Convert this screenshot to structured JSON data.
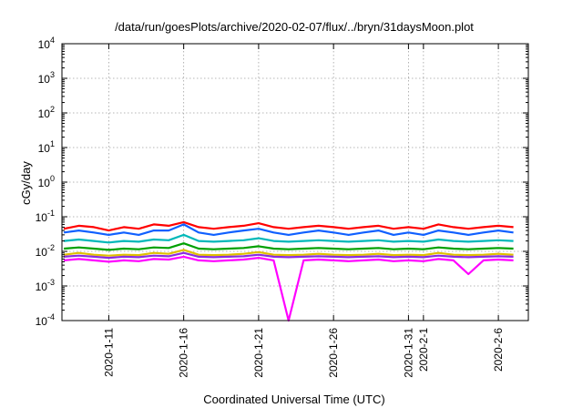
{
  "chart_data": {
    "type": "line",
    "title": "/data/run/goesPlots/archive/2020-02-07/flux/../bryn/31daysMoon.plot",
    "xlabel": "Coordinated Universal Time (UTC)",
    "ylabel": "cGy/day",
    "yscale": "log",
    "ylim": [
      0.0001,
      10000
    ],
    "xlim": [
      "2020-01-07T21:00",
      "2020-02-08T00:00"
    ],
    "grid": true,
    "y_ticks": [
      {
        "value": 0.0001,
        "base": "10",
        "exp": "-4"
      },
      {
        "value": 0.001,
        "base": "10",
        "exp": "-3"
      },
      {
        "value": 0.01,
        "base": "10",
        "exp": "-2"
      },
      {
        "value": 0.1,
        "base": "10",
        "exp": "-1"
      },
      {
        "value": 1,
        "base": "10",
        "exp": "0"
      },
      {
        "value": 10,
        "base": "10",
        "exp": "1"
      },
      {
        "value": 100,
        "base": "10",
        "exp": "2"
      },
      {
        "value": 1000,
        "base": "10",
        "exp": "3"
      },
      {
        "value": 10000,
        "base": "10",
        "exp": "4"
      }
    ],
    "x_ticks": [
      {
        "date": "2020-01-11",
        "label": "2020-1-11"
      },
      {
        "date": "2020-01-16",
        "label": "2020-1-16"
      },
      {
        "date": "2020-01-21",
        "label": "2020-1-21"
      },
      {
        "date": "2020-01-26",
        "label": "2020-1-26"
      },
      {
        "date": "2020-01-31",
        "label": "2020-1-31"
      },
      {
        "date": "2020-02-01",
        "label": "2020-2-1"
      },
      {
        "date": "2020-02-06",
        "label": "2020-2-6"
      }
    ],
    "series": [
      {
        "color": "#ff0000",
        "x": [
          "2020-01-08",
          "2020-01-09",
          "2020-01-10",
          "2020-01-11",
          "2020-01-12",
          "2020-01-13",
          "2020-01-14",
          "2020-01-15",
          "2020-01-16",
          "2020-01-17",
          "2020-01-18",
          "2020-01-19",
          "2020-01-20",
          "2020-01-21",
          "2020-01-22",
          "2020-01-23",
          "2020-01-24",
          "2020-01-25",
          "2020-01-26",
          "2020-01-27",
          "2020-01-28",
          "2020-01-29",
          "2020-01-30",
          "2020-01-31",
          "2020-02-01",
          "2020-02-02",
          "2020-02-03",
          "2020-02-04",
          "2020-02-05",
          "2020-02-06",
          "2020-02-07"
        ],
        "values": [
          0.045,
          0.055,
          0.05,
          0.04,
          0.05,
          0.045,
          0.06,
          0.055,
          0.07,
          0.05,
          0.045,
          0.05,
          0.055,
          0.065,
          0.05,
          0.045,
          0.05,
          0.055,
          0.05,
          0.045,
          0.05,
          0.055,
          0.045,
          0.05,
          0.045,
          0.06,
          0.05,
          0.045,
          0.05,
          0.055,
          0.05
        ]
      },
      {
        "color": "#1060ff",
        "x": [
          "2020-01-08",
          "2020-01-09",
          "2020-01-10",
          "2020-01-11",
          "2020-01-12",
          "2020-01-13",
          "2020-01-14",
          "2020-01-15",
          "2020-01-16",
          "2020-01-17",
          "2020-01-18",
          "2020-01-19",
          "2020-01-20",
          "2020-01-21",
          "2020-01-22",
          "2020-01-23",
          "2020-01-24",
          "2020-01-25",
          "2020-01-26",
          "2020-01-27",
          "2020-01-28",
          "2020-01-29",
          "2020-01-30",
          "2020-01-31",
          "2020-02-01",
          "2020-02-02",
          "2020-02-03",
          "2020-02-04",
          "2020-02-05",
          "2020-02-06",
          "2020-02-07"
        ],
        "values": [
          0.035,
          0.04,
          0.035,
          0.03,
          0.035,
          0.03,
          0.04,
          0.04,
          0.06,
          0.035,
          0.03,
          0.035,
          0.04,
          0.045,
          0.035,
          0.03,
          0.035,
          0.04,
          0.035,
          0.03,
          0.035,
          0.04,
          0.03,
          0.035,
          0.03,
          0.04,
          0.035,
          0.03,
          0.035,
          0.04,
          0.035
        ]
      },
      {
        "color": "#00b8b8",
        "x": [
          "2020-01-08",
          "2020-01-09",
          "2020-01-10",
          "2020-01-11",
          "2020-01-12",
          "2020-01-13",
          "2020-01-14",
          "2020-01-15",
          "2020-01-16",
          "2020-01-17",
          "2020-01-18",
          "2020-01-19",
          "2020-01-20",
          "2020-01-21",
          "2020-01-22",
          "2020-01-23",
          "2020-01-24",
          "2020-01-25",
          "2020-01-26",
          "2020-01-27",
          "2020-01-28",
          "2020-01-29",
          "2020-01-30",
          "2020-01-31",
          "2020-02-01",
          "2020-02-02",
          "2020-02-03",
          "2020-02-04",
          "2020-02-05",
          "2020-02-06",
          "2020-02-07"
        ],
        "values": [
          0.02,
          0.022,
          0.02,
          0.018,
          0.02,
          0.019,
          0.022,
          0.021,
          0.03,
          0.02,
          0.019,
          0.02,
          0.021,
          0.024,
          0.02,
          0.019,
          0.02,
          0.021,
          0.02,
          0.019,
          0.02,
          0.021,
          0.019,
          0.02,
          0.019,
          0.022,
          0.02,
          0.019,
          0.02,
          0.021,
          0.02
        ]
      },
      {
        "color": "#00a000",
        "x": [
          "2020-01-08",
          "2020-01-09",
          "2020-01-10",
          "2020-01-11",
          "2020-01-12",
          "2020-01-13",
          "2020-01-14",
          "2020-01-15",
          "2020-01-16",
          "2020-01-17",
          "2020-01-18",
          "2020-01-19",
          "2020-01-20",
          "2020-01-21",
          "2020-01-22",
          "2020-01-23",
          "2020-01-24",
          "2020-01-25",
          "2020-01-26",
          "2020-01-27",
          "2020-01-28",
          "2020-01-29",
          "2020-01-30",
          "2020-01-31",
          "2020-02-01",
          "2020-02-02",
          "2020-02-03",
          "2020-02-04",
          "2020-02-05",
          "2020-02-06",
          "2020-02-07"
        ],
        "values": [
          0.012,
          0.013,
          0.012,
          0.011,
          0.012,
          0.0115,
          0.013,
          0.0125,
          0.017,
          0.012,
          0.0115,
          0.012,
          0.0125,
          0.014,
          0.012,
          0.0115,
          0.012,
          0.0125,
          0.012,
          0.0115,
          0.012,
          0.0125,
          0.0115,
          0.012,
          0.0115,
          0.013,
          0.012,
          0.0115,
          0.012,
          0.0125,
          0.012
        ]
      },
      {
        "color": "#e0c000",
        "x": [
          "2020-01-08",
          "2020-01-09",
          "2020-01-10",
          "2020-01-11",
          "2020-01-12",
          "2020-01-13",
          "2020-01-14",
          "2020-01-15",
          "2020-01-16",
          "2020-01-17",
          "2020-01-18",
          "2020-01-19",
          "2020-01-20",
          "2020-01-21",
          "2020-01-22",
          "2020-01-23",
          "2020-01-24",
          "2020-01-25",
          "2020-01-26",
          "2020-01-27",
          "2020-01-28",
          "2020-01-29",
          "2020-01-30",
          "2020-01-31",
          "2020-02-01",
          "2020-02-02",
          "2020-02-03",
          "2020-02-04",
          "2020-02-05",
          "2020-02-06",
          "2020-02-07"
        ],
        "values": [
          0.008,
          0.009,
          0.008,
          0.0075,
          0.008,
          0.0078,
          0.009,
          0.0085,
          0.011,
          0.008,
          0.0078,
          0.008,
          0.0085,
          0.0095,
          0.008,
          0.0078,
          0.008,
          0.0085,
          0.008,
          0.0078,
          0.008,
          0.0085,
          0.0078,
          0.008,
          0.0078,
          0.009,
          0.008,
          0.0078,
          0.008,
          0.0085,
          0.008
        ]
      },
      {
        "color": "#8a2be2",
        "x": [
          "2020-01-08",
          "2020-01-09",
          "2020-01-10",
          "2020-01-11",
          "2020-01-12",
          "2020-01-13",
          "2020-01-14",
          "2020-01-15",
          "2020-01-16",
          "2020-01-17",
          "2020-01-18",
          "2020-01-19",
          "2020-01-20",
          "2020-01-21",
          "2020-01-22",
          "2020-01-23",
          "2020-01-24",
          "2020-01-25",
          "2020-01-26",
          "2020-01-27",
          "2020-01-28",
          "2020-01-29",
          "2020-01-30",
          "2020-01-31",
          "2020-02-01",
          "2020-02-02",
          "2020-02-03",
          "2020-02-04",
          "2020-02-05",
          "2020-02-06",
          "2020-02-07"
        ],
        "values": [
          0.007,
          0.0075,
          0.007,
          0.0065,
          0.007,
          0.0068,
          0.0075,
          0.0072,
          0.009,
          0.007,
          0.0068,
          0.007,
          0.0072,
          0.008,
          0.007,
          0.0068,
          0.007,
          0.0072,
          0.007,
          0.0068,
          0.007,
          0.0072,
          0.0068,
          0.007,
          0.0068,
          0.0075,
          0.007,
          0.0068,
          0.007,
          0.0072,
          0.007
        ]
      },
      {
        "color": "#ff00ff",
        "x": [
          "2020-01-08",
          "2020-01-09",
          "2020-01-10",
          "2020-01-11",
          "2020-01-12",
          "2020-01-13",
          "2020-01-14",
          "2020-01-15",
          "2020-01-16",
          "2020-01-17",
          "2020-01-18",
          "2020-01-19",
          "2020-01-20",
          "2020-01-21",
          "2020-01-22",
          "2020-01-23",
          "2020-01-24",
          "2020-01-25",
          "2020-01-26",
          "2020-01-27",
          "2020-01-28",
          "2020-01-29",
          "2020-01-30",
          "2020-01-31",
          "2020-02-01",
          "2020-02-02",
          "2020-02-03",
          "2020-02-04",
          "2020-02-05",
          "2020-02-06",
          "2020-02-07"
        ],
        "values": [
          0.0055,
          0.006,
          0.0055,
          0.005,
          0.0055,
          0.0052,
          0.006,
          0.0058,
          0.007,
          0.0055,
          0.0052,
          0.0055,
          0.0058,
          0.0065,
          0.0055,
          0.0001,
          0.0055,
          0.0058,
          0.0055,
          0.0052,
          0.0055,
          0.0058,
          0.0052,
          0.0055,
          0.0052,
          0.006,
          0.0055,
          0.0022,
          0.0055,
          0.0058,
          0.0055
        ]
      }
    ]
  }
}
